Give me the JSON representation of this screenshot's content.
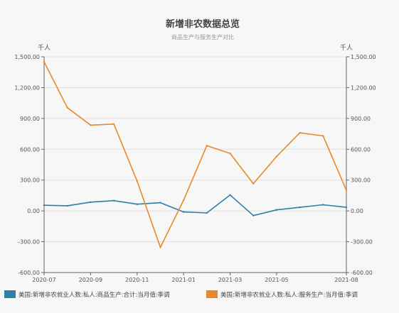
{
  "chart_data": {
    "type": "line",
    "title": "新增非农数据总览",
    "subtitle": "商品生产与服务生产对比",
    "y_unit_left": "千人",
    "y_unit_right": "千人",
    "ylim": [
      -600,
      1500
    ],
    "y_ticks": [
      -600,
      -300,
      0,
      300,
      600,
      900,
      1200,
      1500
    ],
    "y_tick_labels": [
      "-600.00",
      "-300.00",
      "0.00",
      "300.00",
      "600.00",
      "900.00",
      "1,200.00",
      "1,500.00"
    ],
    "x": [
      "2020-07",
      "2020-08",
      "2020-09",
      "2020-10",
      "2020-11",
      "2020-12",
      "2021-01",
      "2021-02",
      "2021-03",
      "2021-04",
      "2021-05",
      "2021-06",
      "2021-07",
      "2021-08"
    ],
    "x_tick_labels": [
      "2020-07",
      "2020-09",
      "2020-11",
      "2021-01",
      "2021-03",
      "2021-05",
      "2021-08"
    ],
    "grid": true,
    "legend_position": "bottom",
    "series": [
      {
        "name": "美国:新增非农就业人数:私人:商品生产:合计:当月值:季调",
        "color": "#2e7fa8",
        "values": [
          55,
          50,
          85,
          100,
          65,
          80,
          -10,
          -20,
          155,
          -45,
          10,
          35,
          60,
          35
        ]
      },
      {
        "name": "美国:新增非农就业人数:私人:服务生产:当月值:季调",
        "color": "#e8892a",
        "values": [
          1450,
          1005,
          835,
          845,
          290,
          -355,
          105,
          635,
          560,
          265,
          530,
          760,
          730,
          200
        ]
      }
    ]
  }
}
